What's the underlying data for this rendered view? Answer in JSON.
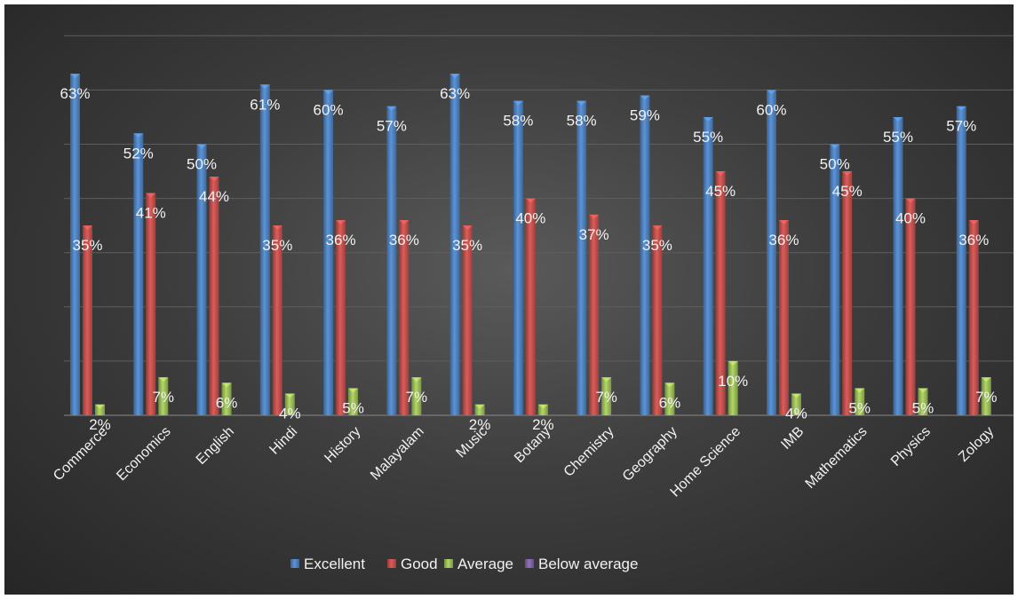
{
  "chart_data": {
    "type": "bar",
    "categories": [
      "Commerce",
      "Economics",
      "English",
      "Hindi",
      "History",
      "Malayalam",
      "Music",
      "Botany",
      "Chemistry",
      "Geography",
      "Home Science",
      "IMB",
      "Mathematics",
      "Physics",
      "Zology"
    ],
    "series": [
      {
        "name": "Excellent",
        "color": "#4f81bd",
        "values": [
          63,
          52,
          50,
          61,
          60,
          57,
          63,
          58,
          58,
          59,
          55,
          60,
          50,
          55,
          57
        ]
      },
      {
        "name": "Good",
        "color": "#c0504d",
        "values": [
          35,
          41,
          44,
          35,
          36,
          36,
          35,
          40,
          37,
          35,
          45,
          36,
          45,
          40,
          36
        ]
      },
      {
        "name": "Average",
        "color": "#9bbb59",
        "values": [
          2,
          7,
          6,
          4,
          5,
          7,
          2,
          2,
          7,
          6,
          10,
          4,
          5,
          5,
          7
        ]
      },
      {
        "name": "Below average",
        "color": "#8064a2",
        "values": [
          0,
          0,
          0,
          0,
          0,
          0,
          0,
          0,
          0,
          0,
          0,
          0,
          0,
          0,
          0
        ]
      }
    ],
    "value_suffix": "%",
    "ylim": [
      0,
      70
    ],
    "grid": true,
    "legend_position": "bottom"
  }
}
